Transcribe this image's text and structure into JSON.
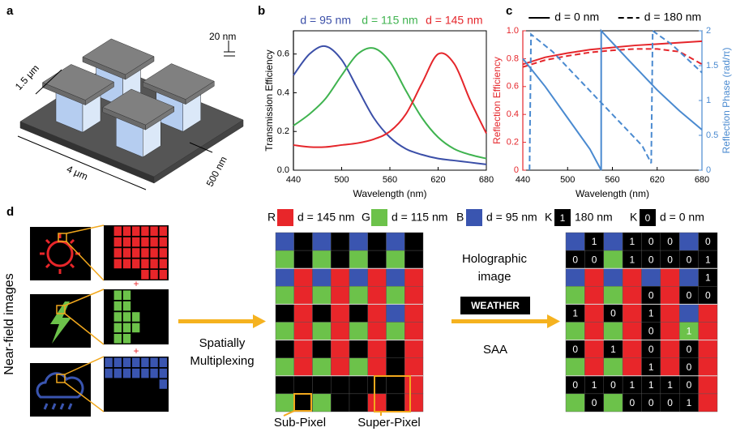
{
  "panel_labels": [
    "a",
    "b",
    "c",
    "d"
  ],
  "panel_a": {
    "labels": [
      "20 nm",
      "1.5 μm",
      "4 μm",
      "500 nm"
    ]
  },
  "chart_data": [
    {
      "type": "line",
      "smooth": true,
      "xlabel": "Wavelength (nm)",
      "ylabel": "Transmission Efficiency",
      "x": [
        440,
        460,
        480,
        500,
        520,
        540,
        560,
        580,
        600,
        620,
        640,
        660,
        680
      ],
      "xlim": [
        440,
        680
      ],
      "xticks": [
        440,
        500,
        560,
        620,
        680
      ],
      "ylim": [
        0,
        0.72
      ],
      "yticks": [
        {
          "value": 0,
          "label": "0.0"
        },
        0.2,
        0.4,
        0.6
      ],
      "series": [
        {
          "name": "d = 95 nm",
          "color": "#3b4fa8",
          "values": [
            0.49,
            0.6,
            0.64,
            0.57,
            0.42,
            0.27,
            0.17,
            0.11,
            0.08,
            0.06,
            0.05,
            0.04,
            0.03
          ]
        },
        {
          "name": "d = 115 nm",
          "color": "#3fb34f",
          "values": [
            0.23,
            0.29,
            0.37,
            0.49,
            0.6,
            0.63,
            0.56,
            0.41,
            0.27,
            0.17,
            0.11,
            0.08,
            0.06
          ]
        },
        {
          "name": "d = 145 nm",
          "color": "#e5262b",
          "values": [
            0.13,
            0.12,
            0.12,
            0.13,
            0.14,
            0.16,
            0.2,
            0.29,
            0.45,
            0.6,
            0.55,
            0.36,
            0.19
          ]
        }
      ]
    },
    {
      "type": "line",
      "smooth": false,
      "xlabel": "Wavelength (nm)",
      "ylabel": "Reflection Efficiency",
      "y2label": "Reflection Phase (rad/π)",
      "ycolor": "#e5262b",
      "y2color": "#4a8ad0",
      "xlim": [
        440,
        680
      ],
      "xticks": [
        440,
        500,
        560,
        620,
        680
      ],
      "ylim": [
        0,
        1
      ],
      "yticks": [
        0,
        0.2,
        0.4,
        0.6,
        0.8,
        {
          "value": 1,
          "label": "1.0"
        }
      ],
      "y2lim": [
        0,
        2
      ],
      "y2ticks": [
        0,
        0.5,
        1,
        1.5,
        2
      ],
      "series": [
        {
          "name": "d = 0 nm",
          "color": "#e5262b",
          "dash": false,
          "x": [
            440,
            470,
            500,
            530,
            560,
            590,
            620,
            650,
            680
          ],
          "values": [
            0.76,
            0.81,
            0.84,
            0.865,
            0.88,
            0.895,
            0.905,
            0.915,
            0.925
          ]
        },
        {
          "name": "d = 180 nm",
          "color": "#e5262b",
          "dash": true,
          "x": [
            440,
            470,
            500,
            530,
            560,
            590,
            620,
            650,
            680
          ],
          "values": [
            0.74,
            0.79,
            0.82,
            0.845,
            0.86,
            0.87,
            0.87,
            0.85,
            0.76
          ]
        },
        {
          "name": "d = 0 nm",
          "color": "#4a8ad0",
          "dash": false,
          "axis": "y2",
          "x": [
            440,
            470,
            500,
            530,
            545,
            545,
            580,
            620,
            650,
            680
          ],
          "values": [
            1.6,
            1.2,
            0.75,
            0.3,
            0,
            2,
            1.6,
            1.15,
            0.85,
            0.58
          ]
        },
        {
          "name": "d = 180 nm",
          "color": "#4a8ad0",
          "dash": true,
          "axis": "y2",
          "x": [
            449,
            451,
            480,
            520,
            560,
            600,
            612,
            614,
            640,
            680
          ],
          "values": [
            0,
            1.95,
            1.7,
            1.25,
            0.8,
            0.35,
            0.1,
            2,
            1.8,
            1.4
          ]
        }
      ]
    }
  ],
  "panel_d": {
    "side_label": "Near-field images",
    "plus": [
      "+",
      "+"
    ],
    "multiplex": [
      "Spatially",
      "Multiplexing"
    ],
    "holo": [
      "Holographic",
      "image"
    ],
    "weather": "WEATHER",
    "saa": "SAA",
    "sub_pixel": "Sub-Pixel",
    "super_pixel": "Super-Pixel",
    "colors": {
      "R": "#e8262a",
      "G": "#6cc24a",
      "B": "#3a55b0",
      "K": "#000000"
    },
    "legend": [
      {
        "key": "R",
        "color": "R",
        "label": "d = 145 nm"
      },
      {
        "key": "G",
        "color": "G",
        "label": "d = 115 nm"
      },
      {
        "key": "B",
        "color": "B",
        "label": "d = 95 nm"
      },
      {
        "key": "K",
        "color": "K",
        "digit": "1",
        "label": "180 nm"
      },
      {
        "key": "K",
        "color": "K",
        "digit": "0",
        "label": "d = 0 nm"
      }
    ],
    "grid": [
      "BKBKBKBK",
      "GKGKGKGK",
      "BRBRBRBR",
      "GRGRGRGR",
      "KRKRKRBR",
      "GRGRGRGR",
      "KRKRKRKR",
      "GRGRGRKR",
      "KKKKKKKR",
      "GKGKKRKR"
    ],
    "saa_grid": {
      "colors": [
        "BKBKKKBK",
        "KKGKKKKK",
        "BRBRBRBK",
        "GRGRKRKK",
        "KRKRKRBR",
        "GRGRKRGR",
        "KRKRKRKR",
        "GRGRKRKR",
        "KKKKKKKR",
        "GKGKKKKR"
      ],
      "digits": [
        [
          null,
          "1",
          null,
          "1",
          "0",
          "0",
          null,
          "0"
        ],
        [
          "0",
          "0",
          null,
          "1",
          "0",
          "0",
          "0",
          "1"
        ],
        [
          null,
          null,
          null,
          null,
          null,
          null,
          null,
          "1"
        ],
        [
          null,
          null,
          null,
          null,
          "0",
          null,
          "0",
          "0"
        ],
        [
          "1",
          null,
          "0",
          null,
          "1",
          null,
          null,
          null
        ],
        [
          null,
          null,
          null,
          null,
          "0",
          null,
          "1",
          null
        ],
        [
          "0",
          null,
          "1",
          null,
          "0",
          null,
          "0",
          null
        ],
        [
          null,
          null,
          null,
          null,
          "1",
          null,
          "0",
          null
        ],
        [
          "0",
          "1",
          "0",
          "1",
          "1",
          "1",
          "0",
          null
        ],
        [
          null,
          "0",
          null,
          "0",
          "0",
          "0",
          "1",
          null
        ]
      ]
    }
  }
}
